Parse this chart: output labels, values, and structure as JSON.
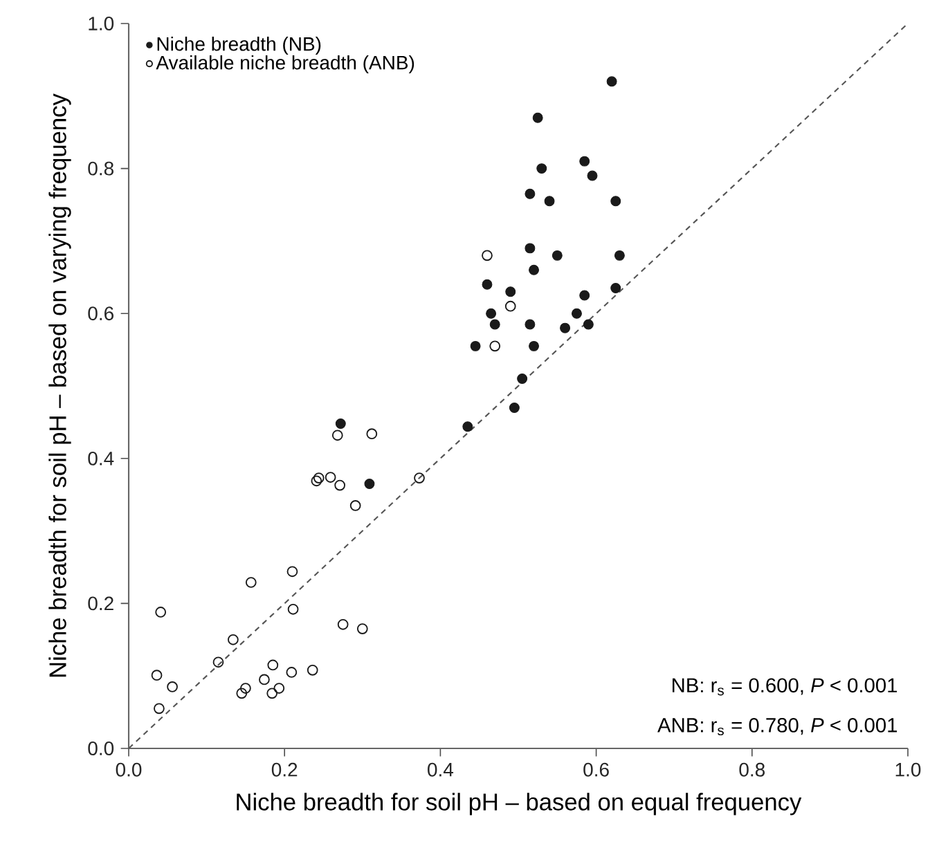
{
  "chart_data": {
    "type": "scatter",
    "xlabel": "Niche breadth for soil pH – based on equal frequency",
    "ylabel": "Niche breadth for soil pH – based on varying frequency",
    "xlim": [
      0,
      1
    ],
    "ylim": [
      0,
      1
    ],
    "xticks": [
      {
        "value": 0,
        "label": "0.0"
      },
      {
        "value": 0.2,
        "label": "0.2"
      },
      {
        "value": 0.4,
        "label": "0.4"
      },
      {
        "value": 0.6,
        "label": "0.6"
      },
      {
        "value": 0.8,
        "label": "0.8"
      },
      {
        "value": 1,
        "label": "1.0"
      }
    ],
    "yticks": [
      {
        "value": 0,
        "label": "0.0"
      },
      {
        "value": 0.2,
        "label": "0.2"
      },
      {
        "value": 0.4,
        "label": "0.4"
      },
      {
        "value": 0.6,
        "label": "0.6"
      },
      {
        "value": 0.8,
        "label": "0.8"
      },
      {
        "value": 1,
        "label": "1.0"
      }
    ],
    "legend": "top left",
    "grid": false,
    "annotations": [
      "NB: r$_{s}$ = 0.600, *P* < 0.001",
      "ANB: r$_{s}$ = 0.780, *P* < 0.001"
    ],
    "series": [
      {
        "name": "Niche breadth (NB)",
        "color": "#1a1a1a",
        "marker": "circle",
        "x": [
          0.272,
          0.309,
          0.435,
          0.62,
          0.525,
          0.53,
          0.585,
          0.595,
          0.515,
          0.54,
          0.625,
          0.515,
          0.55,
          0.63,
          0.52,
          0.46,
          0.49,
          0.585,
          0.625,
          0.465,
          0.575,
          0.47,
          0.515,
          0.56,
          0.59,
          0.445,
          0.52,
          0.505,
          0.495
        ],
        "values": [
          0.448,
          0.365,
          0.444,
          0.92,
          0.87,
          0.8,
          0.81,
          0.79,
          0.765,
          0.755,
          0.755,
          0.69,
          0.68,
          0.68,
          0.66,
          0.64,
          0.63,
          0.625,
          0.635,
          0.6,
          0.6,
          0.585,
          0.585,
          0.58,
          0.585,
          0.555,
          0.555,
          0.51,
          0.47
        ]
      },
      {
        "name": "Available niche breadth (ANB)",
        "color": "#1a1a1a",
        "marker": "open circle",
        "x": [
          0.268,
          0.312,
          0.241,
          0.244,
          0.259,
          0.271,
          0.291,
          0.373,
          0.21,
          0.157,
          0.211,
          0.041,
          0.134,
          0.275,
          0.3,
          0.115,
          0.036,
          0.056,
          0.039,
          0.185,
          0.174,
          0.209,
          0.236,
          0.15,
          0.145,
          0.184,
          0.193,
          0.46,
          0.49,
          0.47
        ],
        "values": [
          0.432,
          0.434,
          0.369,
          0.373,
          0.374,
          0.363,
          0.335,
          0.373,
          0.244,
          0.229,
          0.192,
          0.188,
          0.15,
          0.171,
          0.165,
          0.119,
          0.101,
          0.085,
          0.055,
          0.115,
          0.095,
          0.105,
          0.108,
          0.083,
          0.076,
          0.076,
          0.083,
          0.68,
          0.61,
          0.555
        ]
      },
      {
        "type": "line",
        "color": "#555555",
        "line_style": "dashed",
        "x": [
          0,
          1
        ],
        "values": [
          0,
          1
        ]
      }
    ]
  }
}
